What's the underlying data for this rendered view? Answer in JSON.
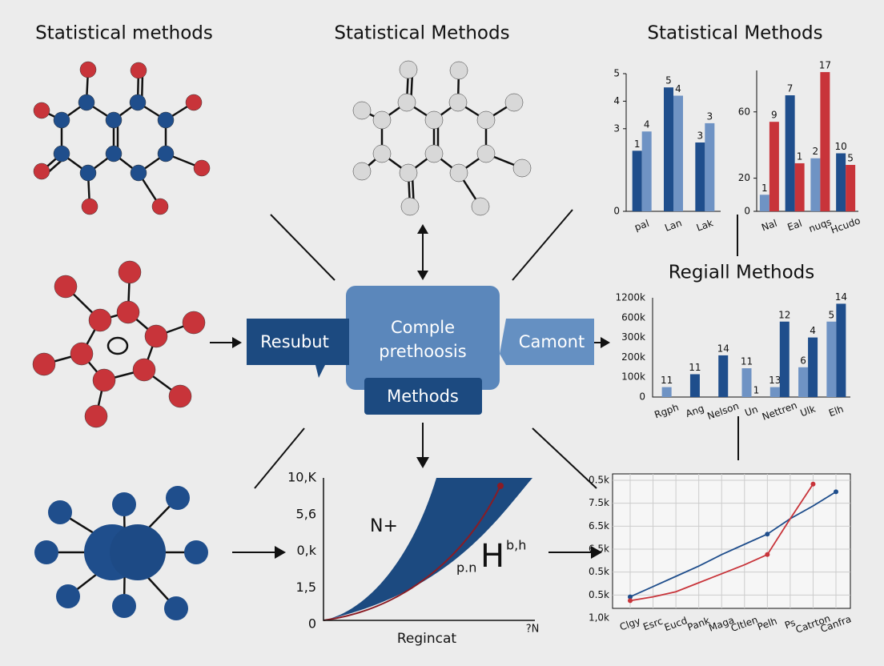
{
  "titles": [
    "Statistical methods",
    "Statistical Methods",
    "Statistical Methods"
  ],
  "center": {
    "main": [
      "Comple",
      "prethoosis"
    ],
    "sub": "Methods",
    "left": "Resubut",
    "right": "Camont"
  },
  "bar_charts": [
    {
      "type": "bar",
      "categories": [
        "pal",
        "Lan",
        "Lak"
      ],
      "ylim": [
        0,
        5
      ],
      "yticks": [
        0,
        3,
        4,
        5
      ],
      "series": [
        {
          "color": "#1f4e8c",
          "values": [
            2.2,
            4.5,
            2.5
          ],
          "annotations": [
            "1",
            "5",
            "3"
          ]
        },
        {
          "color": "#6f93c4",
          "values": [
            2.9,
            4.2,
            3.2
          ],
          "annotations": [
            "4",
            "4",
            "3"
          ]
        }
      ]
    },
    {
      "type": "bar",
      "categories": [
        "Nal",
        "Eal",
        "nuqs",
        "Hcudo"
      ],
      "ylim": [
        0,
        85
      ],
      "yticks": [
        0,
        20,
        60
      ],
      "series": [
        {
          "color": "#6f93c4",
          "values": [
            10,
            null,
            32,
            null
          ],
          "annotations": [
            "1",
            null,
            "2",
            null
          ]
        },
        {
          "color": "#1f4e8c",
          "values": [
            null,
            70,
            null,
            35
          ],
          "annotations": [
            null,
            "7",
            null,
            "10"
          ]
        },
        {
          "color": "#c8343a",
          "values": [
            54,
            29,
            84,
            28
          ],
          "annotations": [
            "9",
            "1",
            "17",
            "5"
          ]
        }
      ]
    },
    {
      "type": "bar",
      "title": "Regiall Methods",
      "categories": [
        "Rgph",
        "Ang",
        "Nelson",
        "Un",
        "Nettren",
        "Ulk",
        "Elh"
      ],
      "y_labels": [
        "0",
        "100k",
        "200k",
        "300k",
        "600k",
        "1200k"
      ],
      "ylim": [
        0,
        100
      ],
      "series": [
        {
          "color": "#6f93c4",
          "values": [
            10,
            null,
            null,
            29,
            10,
            30,
            76
          ],
          "annotations": [
            "11",
            null,
            null,
            "11",
            "13",
            "6",
            "5"
          ]
        },
        {
          "color": "#1f4e8c",
          "values": [
            null,
            23,
            42,
            0,
            76,
            60,
            94
          ],
          "annotations": [
            null,
            "11",
            "14",
            "1",
            "12",
            "4",
            "14"
          ]
        }
      ]
    }
  ],
  "curve_chart": {
    "y_labels": [
      "10,K",
      "5,6",
      "0,k",
      "1,5",
      "0"
    ],
    "x_label": "Regincat",
    "x_end": "?N",
    "annotations": [
      "N+",
      "p.n",
      "H",
      "b,h"
    ]
  },
  "line_chart": {
    "type": "line",
    "categories": [
      "Clgy",
      "Esrc",
      "Eucd",
      "Pank",
      "Maga",
      "Cltlen",
      "Pelh",
      "Ps",
      "Catrton",
      "Canfra"
    ],
    "y_labels": [
      "0.5k",
      "7.5k",
      "6.5k",
      "6.5k",
      "0.5k",
      "0.5k",
      "1,0k"
    ],
    "ylim": [
      0,
      100
    ],
    "series": [
      {
        "color": "#1f4e8c",
        "values": [
          9,
          17,
          25,
          33,
          42,
          50,
          58,
          70,
          80,
          91
        ]
      },
      {
        "color": "#c8343a",
        "values": [
          6,
          9,
          13,
          20,
          27,
          34,
          42,
          70,
          97,
          null
        ]
      }
    ]
  }
}
